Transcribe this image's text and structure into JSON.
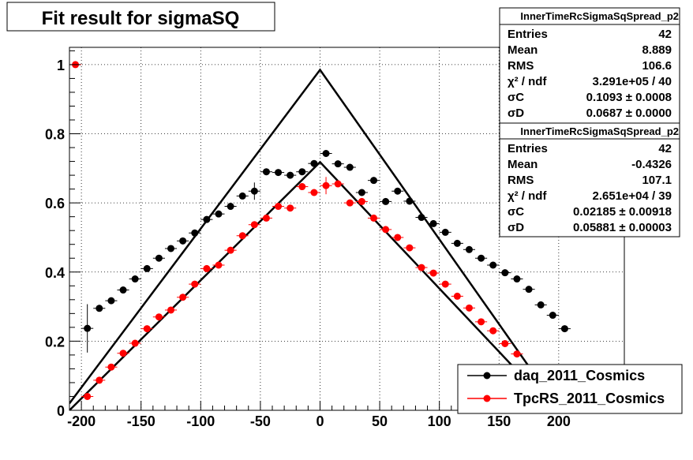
{
  "title": "Fit result for sigmaSQ",
  "stats_boxes": [
    {
      "name": "InnerTimeRcSigmaSqSpread_p2",
      "rows": [
        {
          "label": "Entries",
          "value": "42"
        },
        {
          "label": "Mean",
          "value": "8.889"
        },
        {
          "label": "RMS",
          "value": "106.6"
        },
        {
          "label": "χ² / ndf",
          "value": "3.291e+05 / 40"
        },
        {
          "label": "σC",
          "value": "0.1093 ± 0.0008"
        },
        {
          "label": "σD",
          "value": "0.0687 ± 0.0000"
        }
      ]
    },
    {
      "name": "InnerTimeRcSigmaSqSpread_p2",
      "rows": [
        {
          "label": "Entries",
          "value": "42"
        },
        {
          "label": "Mean",
          "value": "-0.4326"
        },
        {
          "label": "RMS",
          "value": "107.1"
        },
        {
          "label": "χ² / ndf",
          "value": "2.651e+04 / 39"
        },
        {
          "label": "σC",
          "value": "0.02185 ± 0.00918"
        },
        {
          "label": "σD",
          "value": "0.05881 ± 0.00003"
        }
      ]
    }
  ],
  "chart_data": {
    "type": "scatter",
    "title": "Fit result for sigmaSQ",
    "xlabel": "",
    "ylabel": "",
    "xlim": [
      -210,
      255
    ],
    "ylim": [
      0,
      1.05
    ],
    "x_ticks": [
      "-200",
      "-150",
      "-100",
      "-50",
      "0",
      "50",
      "100",
      "150",
      "200"
    ],
    "y_ticks": [
      "0",
      "0.2",
      "0.4",
      "0.6",
      "0.8",
      "1"
    ],
    "grid": true,
    "legend_position": "bottom-right",
    "series": [
      {
        "name": "daq_2011_Cosmics",
        "color": "#000000",
        "points": [
          [
            -195,
            0.237,
            0.07
          ],
          [
            -185,
            0.295,
            0.006
          ],
          [
            -175,
            0.317,
            0.006
          ],
          [
            -165,
            0.348,
            0.006
          ],
          [
            -155,
            0.38,
            0.006
          ],
          [
            -145,
            0.41,
            0.006
          ],
          [
            -135,
            0.44,
            0.006
          ],
          [
            -125,
            0.468,
            0.006
          ],
          [
            -115,
            0.49,
            0.006
          ],
          [
            -105,
            0.513,
            0.006
          ],
          [
            -95,
            0.552,
            0.006
          ],
          [
            -85,
            0.568,
            0.006
          ],
          [
            -75,
            0.59,
            0.006
          ],
          [
            -65,
            0.62,
            0.006
          ],
          [
            -55,
            0.634,
            0.025
          ],
          [
            -45,
            0.69,
            0.006
          ],
          [
            -35,
            0.688,
            0.006
          ],
          [
            -25,
            0.68,
            0.006
          ],
          [
            -15,
            0.69,
            0.006
          ],
          [
            -5,
            0.714,
            0.006
          ],
          [
            5,
            0.743,
            0.006
          ],
          [
            15,
            0.713,
            0.006
          ],
          [
            25,
            0.703,
            0.006
          ],
          [
            35,
            0.63,
            0.006
          ],
          [
            45,
            0.665,
            0.006
          ],
          [
            55,
            0.604,
            0.006
          ],
          [
            65,
            0.634,
            0.006
          ],
          [
            75,
            0.605,
            0.006
          ],
          [
            85,
            0.558,
            0.006
          ],
          [
            95,
            0.54,
            0.006
          ],
          [
            105,
            0.515,
            0.006
          ],
          [
            115,
            0.483,
            0.006
          ],
          [
            125,
            0.465,
            0.006
          ],
          [
            135,
            0.44,
            0.006
          ],
          [
            145,
            0.42,
            0.006
          ],
          [
            155,
            0.398,
            0.006
          ],
          [
            165,
            0.38,
            0.006
          ],
          [
            175,
            0.35,
            0.006
          ],
          [
            185,
            0.305,
            0.006
          ],
          [
            195,
            0.275,
            0.006
          ],
          [
            205,
            0.236,
            0.006
          ]
        ],
        "fit_line": [
          [
            -210,
            0.02
          ],
          [
            0,
            0.985
          ],
          [
            210,
            -0.045
          ]
        ]
      },
      {
        "name": "TpcRS_2011_Cosmics",
        "color": "#ff0000",
        "points": [
          [
            -205,
            1.0,
            0.004
          ],
          [
            -195,
            0.04,
            0.006
          ],
          [
            -185,
            0.087,
            0.006
          ],
          [
            -175,
            0.125,
            0.006
          ],
          [
            -165,
            0.165,
            0.006
          ],
          [
            -155,
            0.194,
            0.006
          ],
          [
            -145,
            0.236,
            0.006
          ],
          [
            -135,
            0.27,
            0.006
          ],
          [
            -125,
            0.29,
            0.006
          ],
          [
            -115,
            0.327,
            0.006
          ],
          [
            -105,
            0.365,
            0.006
          ],
          [
            -95,
            0.41,
            0.006
          ],
          [
            -85,
            0.42,
            0.006
          ],
          [
            -75,
            0.463,
            0.006
          ],
          [
            -65,
            0.505,
            0.006
          ],
          [
            -55,
            0.537,
            0.006
          ],
          [
            -45,
            0.556,
            0.006
          ],
          [
            -35,
            0.59,
            0.006
          ],
          [
            -25,
            0.585,
            0.006
          ],
          [
            -15,
            0.647,
            0.006
          ],
          [
            -5,
            0.63,
            0.006
          ],
          [
            5,
            0.65,
            0.025
          ],
          [
            15,
            0.655,
            0.006
          ],
          [
            25,
            0.6,
            0.006
          ],
          [
            35,
            0.604,
            0.006
          ],
          [
            45,
            0.556,
            0.006
          ],
          [
            55,
            0.523,
            0.006
          ],
          [
            65,
            0.5,
            0.006
          ],
          [
            75,
            0.47,
            0.006
          ],
          [
            85,
            0.413,
            0.006
          ],
          [
            95,
            0.397,
            0.006
          ],
          [
            105,
            0.365,
            0.006
          ],
          [
            115,
            0.33,
            0.006
          ],
          [
            125,
            0.296,
            0.006
          ],
          [
            135,
            0.256,
            0.006
          ],
          [
            145,
            0.23,
            0.006
          ],
          [
            155,
            0.193,
            0.006
          ],
          [
            165,
            0.163,
            0.006
          ]
        ],
        "fit_line": [
          [
            -210,
            0.0
          ],
          [
            0,
            0.718
          ],
          [
            210,
            -0.05
          ]
        ]
      }
    ]
  },
  "colors": {
    "daq": "#000000",
    "tpcrs": "#ff0000",
    "grid": "#000000",
    "background": "#ffffff"
  }
}
